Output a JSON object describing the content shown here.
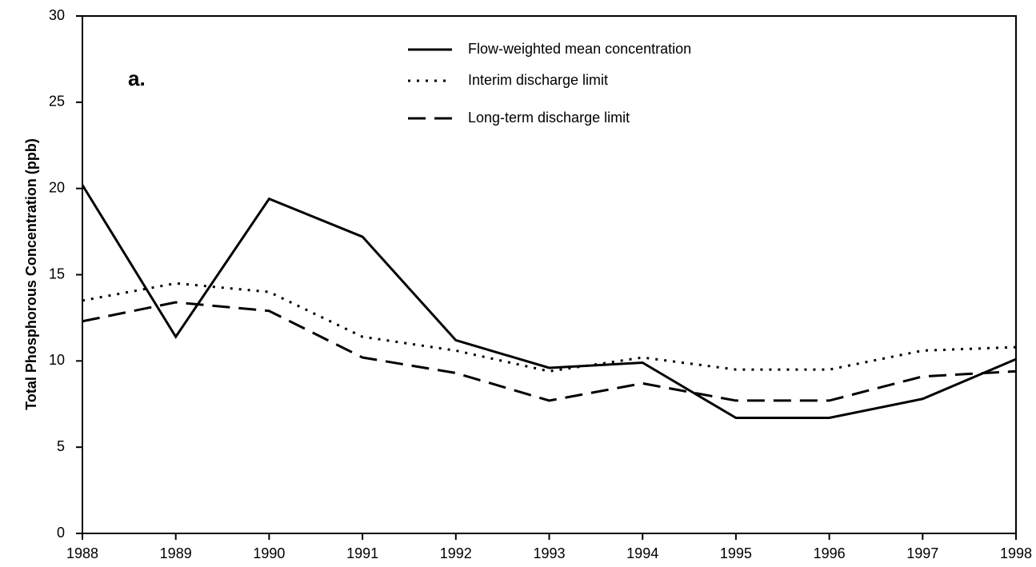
{
  "chart_data": {
    "type": "line",
    "ylabel": "Total Phosphorous Concentration (ppb)",
    "annotation": "a.",
    "x": [
      1988,
      1989,
      1990,
      1991,
      1992,
      1993,
      1994,
      1995,
      1996,
      1997,
      1998
    ],
    "xlim": [
      1988,
      1998
    ],
    "xticks": [
      1988,
      1989,
      1990,
      1991,
      1992,
      1993,
      1994,
      1995,
      1996,
      1997,
      1998
    ],
    "ylim": [
      0,
      30
    ],
    "yticks": [
      0,
      5,
      10,
      15,
      20,
      25,
      30
    ],
    "grid": false,
    "legend": "top",
    "series": [
      {
        "name": "Flow-weighted mean concentration",
        "color": "#000000",
        "dash": "solid",
        "values": [
          20.2,
          11.4,
          19.4,
          17.2,
          11.2,
          9.6,
          9.9,
          6.7,
          6.7,
          7.8,
          10.1
        ]
      },
      {
        "name": "Interim discharge limit",
        "color": "#000000",
        "dash": "dotted",
        "values": [
          13.5,
          14.5,
          14.0,
          11.4,
          10.6,
          9.4,
          10.2,
          9.5,
          9.5,
          10.6,
          10.8
        ]
      },
      {
        "name": "Long-term discharge limit",
        "color": "#000000",
        "dash": "dashed",
        "values": [
          12.3,
          13.4,
          12.9,
          10.2,
          9.3,
          7.7,
          8.7,
          7.7,
          7.7,
          9.1,
          9.4
        ]
      }
    ]
  }
}
